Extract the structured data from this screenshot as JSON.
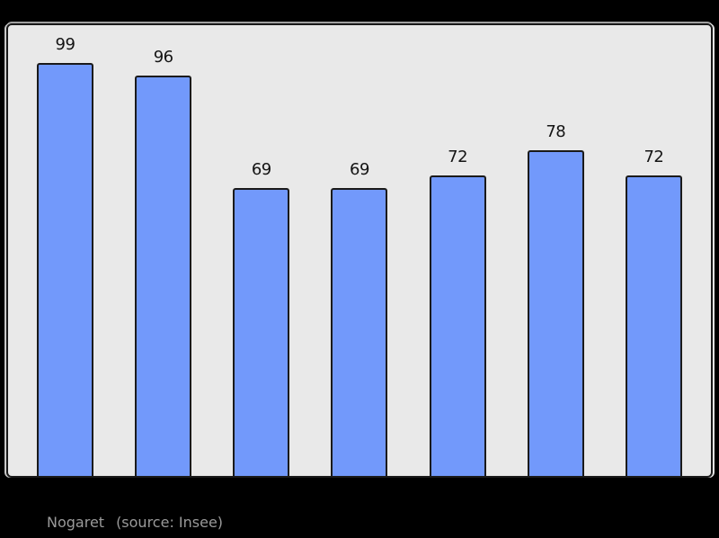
{
  "page": {
    "background_color": "#000000"
  },
  "chart_data": {
    "type": "bar",
    "values": [
      99,
      96,
      69,
      69,
      72,
      78,
      72
    ],
    "bar_labels": [
      "99",
      "96",
      "69",
      "69",
      "72",
      "78",
      "72"
    ],
    "ylim": [
      0,
      108
    ],
    "grid": false,
    "legend": false,
    "colors": {
      "bar_fill": "#7299fb",
      "bar_border": "#1a1a1a",
      "plot_background": "#e9e9e9",
      "value_label": "#141414"
    }
  },
  "caption": {
    "name": "Nogaret",
    "source_note": "(source: Insee)",
    "color": "#9a9a9a"
  }
}
